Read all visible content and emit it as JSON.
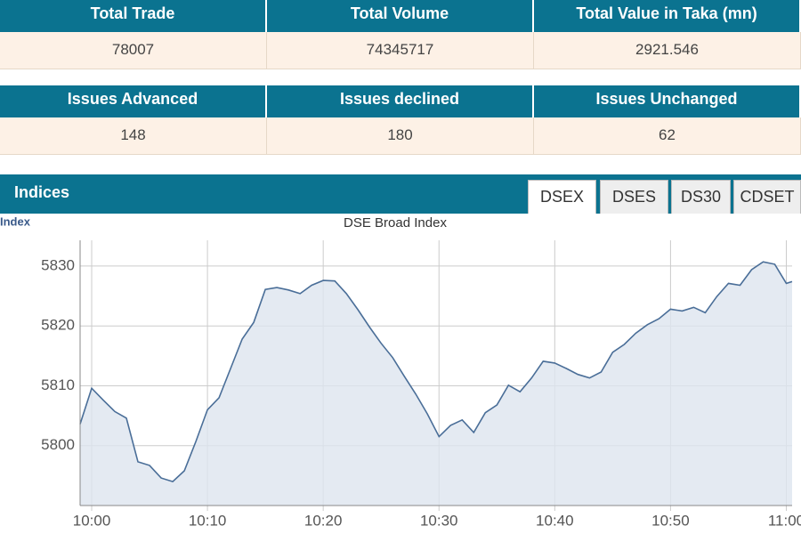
{
  "summary_tables": [
    {
      "headers": [
        "Total Trade",
        "Total Volume",
        "Total Value in Taka (mn)"
      ],
      "values": [
        78007,
        74345717,
        2921.546
      ]
    },
    {
      "headers": [
        "Issues Advanced",
        "Issues declined",
        "Issues Unchanged"
      ],
      "values": [
        148,
        180,
        62
      ]
    }
  ],
  "indices": {
    "title": "Indices",
    "tabs": [
      "DSEX",
      "DSES",
      "DS30",
      "CDSET"
    ]
  },
  "chart_data": {
    "type": "line",
    "title": "DSE Broad Index",
    "y_label": "Index",
    "color": "#4a6e98",
    "fill": "#dde5ef",
    "x": [
      -1,
      0,
      1,
      2,
      3,
      4,
      5,
      6,
      7,
      8,
      9,
      10,
      11,
      12,
      13,
      14,
      15,
      16,
      17,
      18,
      19,
      20,
      21,
      22,
      23,
      24,
      25,
      26,
      27,
      28,
      29,
      30,
      31,
      32,
      33,
      34,
      35,
      36,
      37,
      38,
      39,
      40,
      41,
      42,
      43,
      44,
      45,
      46,
      47,
      48,
      49,
      50,
      51,
      52,
      53,
      54,
      55,
      56,
      57,
      58,
      59,
      60,
      60.5
    ],
    "values": [
      5803.6,
      5809.6,
      5807.6,
      5805.7,
      5804.6,
      5797.3,
      5796.7,
      5794.6,
      5794.0,
      5795.8,
      5800.7,
      5806.0,
      5808.0,
      5812.9,
      5817.8,
      5820.6,
      5826.1,
      5826.4,
      5826.0,
      5825.4,
      5826.8,
      5827.6,
      5827.5,
      5825.4,
      5822.7,
      5819.8,
      5817.1,
      5814.7,
      5811.6,
      5808.6,
      5805.3,
      5801.5,
      5803.4,
      5804.3,
      5802.2,
      5805.5,
      5806.8,
      5810.1,
      5809.0,
      5811.3,
      5814.1,
      5813.8,
      5812.9,
      5811.9,
      5811.3,
      5812.3,
      5815.6,
      5816.9,
      5818.8,
      5820.2,
      5821.2,
      5822.8,
      5822.5,
      5823.1,
      5822.2,
      5824.9,
      5827.1,
      5826.8,
      5829.4,
      5830.7,
      5830.3,
      5827.1,
      5827.4
    ],
    "xlim": [
      -1,
      60.5
    ],
    "ylim": [
      5790,
      5834.3
    ],
    "xticks": [
      {
        "value": 0,
        "label": "10:00"
      },
      {
        "value": 10,
        "label": "10:10"
      },
      {
        "value": 20,
        "label": "10:20"
      },
      {
        "value": 30,
        "label": "10:30"
      },
      {
        "value": 40,
        "label": "10:40"
      },
      {
        "value": 50,
        "label": "10:50"
      },
      {
        "value": 60,
        "label": "11:00"
      }
    ],
    "yticks": [
      5800,
      5810,
      5820,
      5830
    ],
    "grid": true
  }
}
